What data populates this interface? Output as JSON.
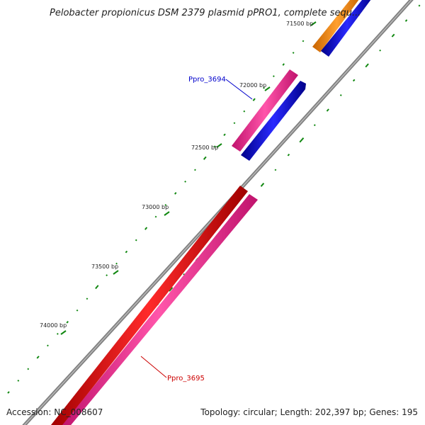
{
  "title": "Pelobacter propionicus DSM 2379 plasmid pPRO1, complete sequ...",
  "footer": {
    "accession": "Accession: NC_008607",
    "summary": "Topology: circular; Length: 202,397 bp; Genes: 195"
  },
  "ticks": [
    "71500 bp",
    "72000 bp",
    "72500 bp",
    "73000 bp",
    "73500 bp",
    "74000 bp"
  ],
  "genes": [
    {
      "label": "Ppro_3694",
      "color": "#0000cc"
    },
    {
      "label": "Ppro_3695",
      "color": "#cc0000"
    }
  ],
  "colors": {
    "backbone": "#808080",
    "forward_cds": "#ff0000",
    "forward_gene": "#ff3399",
    "reverse_cds": "#0000ff",
    "other_feature": "#ff8c00",
    "gc_marks": "#118811"
  }
}
